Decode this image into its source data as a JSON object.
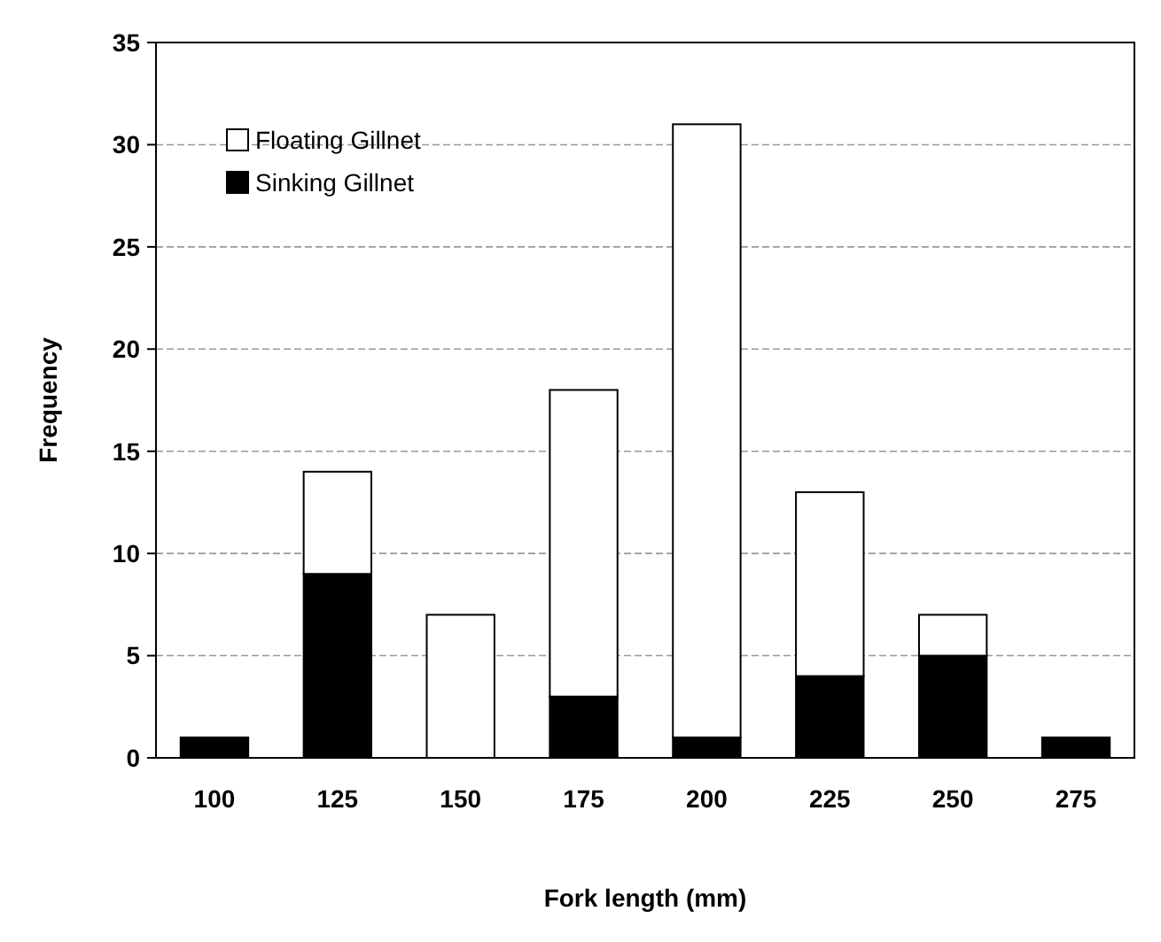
{
  "chart_data": {
    "type": "bar",
    "stacked": true,
    "xlabel": "Fork length (mm)",
    "ylabel": "Frequency",
    "categories": [
      "100",
      "125",
      "150",
      "175",
      "200",
      "225",
      "250",
      "275"
    ],
    "series": [
      {
        "name": "Sinking Gillnet",
        "color": "#000000",
        "values": [
          1,
          9,
          0,
          3,
          1,
          4,
          5,
          1
        ]
      },
      {
        "name": "Floating Gillnet",
        "color": "#ffffff",
        "values": [
          0,
          5,
          7,
          15,
          30,
          9,
          2,
          0
        ]
      }
    ],
    "ylim": [
      0,
      35
    ],
    "yticks": [
      0,
      5,
      10,
      15,
      20,
      25,
      30,
      35
    ],
    "grid": "y",
    "legend": "top left"
  }
}
